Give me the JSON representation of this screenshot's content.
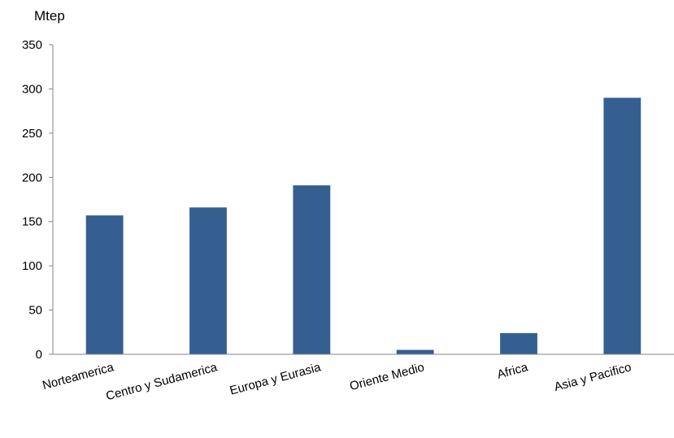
{
  "chart_data": {
    "type": "bar",
    "unit_label": "Mtep",
    "categories": [
      "Norteamerica",
      "Centro y Sudamerica",
      "Europa y Eurasia",
      "Oriente Medio",
      "Africa",
      "Asia y Pacifico"
    ],
    "values": [
      157,
      166,
      191,
      5,
      24,
      290
    ],
    "ylim": [
      0,
      350
    ],
    "yticks": [
      0,
      50,
      100,
      150,
      200,
      250,
      300,
      350
    ],
    "grid": false,
    "legend": "none",
    "bar_color": "#365F91"
  }
}
